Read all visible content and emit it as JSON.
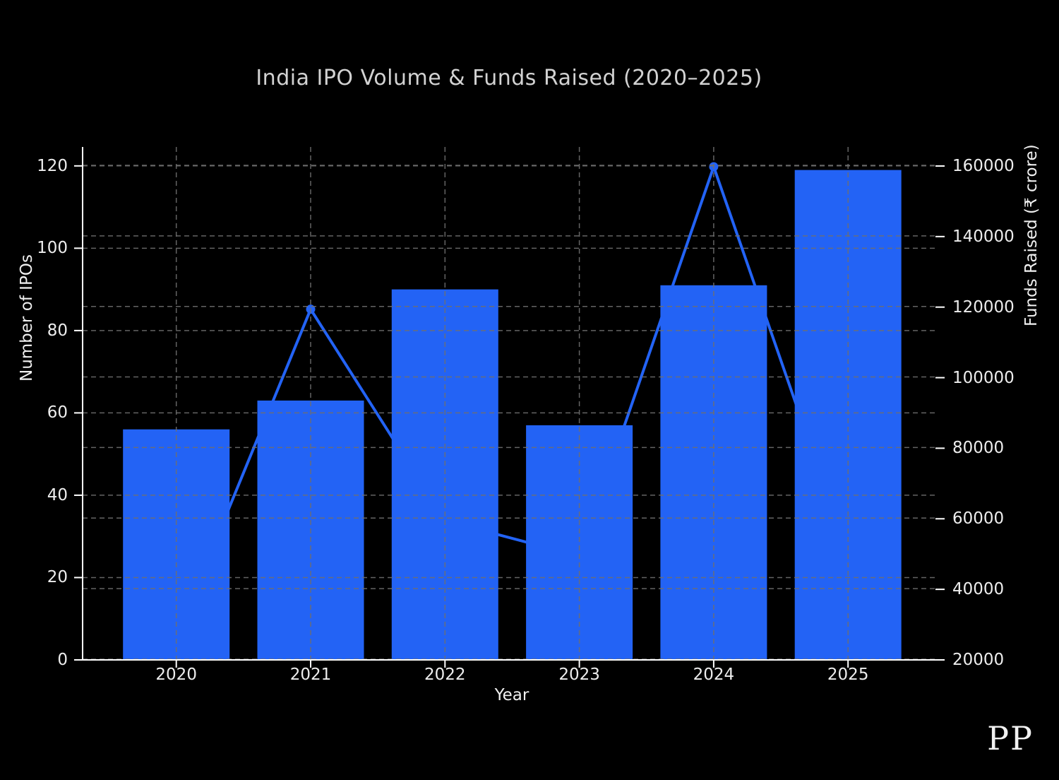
{
  "watermark": "PP",
  "colors": {
    "background": "#000000",
    "accent_blue": "#2363f5",
    "gridline": "#6f6f6f",
    "spine": "#ffffff",
    "tick_text": "#ededed",
    "title_text": "#d2d2d2"
  },
  "chart_data": {
    "type": "bar",
    "title": "India IPO Volume & Funds Raised (2020–2025)",
    "categories": [
      "2020",
      "2021",
      "2022",
      "2023",
      "2024",
      "2025"
    ],
    "series": [
      {
        "name": "Number of IPOs",
        "type": "bar",
        "axis": "left",
        "values": [
          56,
          63,
          90,
          57,
          91,
          119
        ]
      },
      {
        "name": "Funds Raised",
        "type": "line",
        "axis": "right",
        "values": [
          26600,
          119400,
          59500,
          49400,
          159800,
          50000
        ]
      }
    ],
    "xlabel": "Year",
    "ylabel_left": "Number of IPOs",
    "ylabel_right": "Funds Raised (₹ crore)",
    "left_ticks": [
      0,
      20,
      40,
      60,
      80,
      100,
      120
    ],
    "right_ticks": [
      20000,
      40000,
      60000,
      80000,
      100000,
      120000,
      140000,
      160000
    ],
    "ylim_left": [
      0,
      124.6
    ],
    "ylim_right": [
      20000,
      165400
    ],
    "grid": true,
    "legend": false
  }
}
